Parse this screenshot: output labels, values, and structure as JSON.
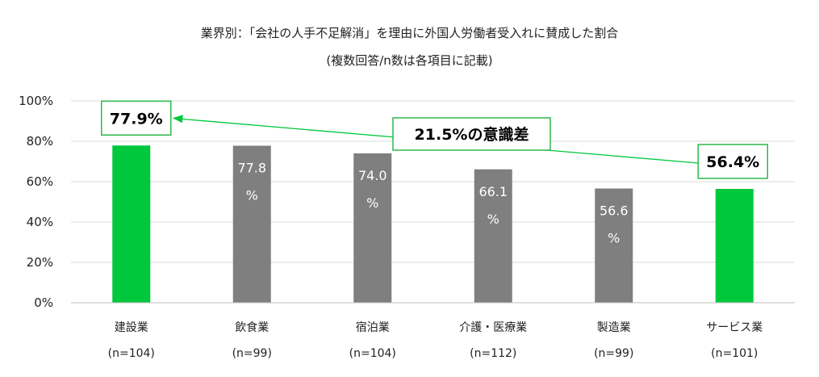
{
  "chart_data": {
    "type": "bar",
    "title": "業界別：「会社の人手不足解消」を理由に外国人労働者受入れに賛成した割合",
    "subtitle": "(複数回答/n数は各項目に記載)",
    "categories": [
      "建設業",
      "飲食業",
      "宿泊業",
      "介護・医療業",
      "製造業",
      "サービス業"
    ],
    "n_labels": [
      "(n=104)",
      "(n=99)",
      "(n=104)",
      "(n=112)",
      "(n=99)",
      "(n=101)"
    ],
    "values": [
      77.9,
      77.8,
      74.0,
      66.1,
      56.6,
      56.4
    ],
    "value_labels": [
      [
        "77.9%"
      ],
      [
        "77.8",
        "%"
      ],
      [
        "74.0",
        "%"
      ],
      [
        "66.1",
        "%"
      ],
      [
        "56.6",
        "%"
      ],
      [
        "56.4%"
      ]
    ],
    "highlighted": [
      true,
      false,
      false,
      false,
      false,
      true
    ],
    "y_ticks": [
      "0%",
      "20%",
      "40%",
      "60%",
      "80%",
      "100%"
    ],
    "ylim": [
      0,
      100
    ],
    "grid": true,
    "annotation": "21.5%の意識差"
  },
  "colors": {
    "highlight": "#00c83c",
    "normal": "#7f7f7f",
    "grid": "#d9d9d9",
    "annotation_border": "#2db84a"
  }
}
